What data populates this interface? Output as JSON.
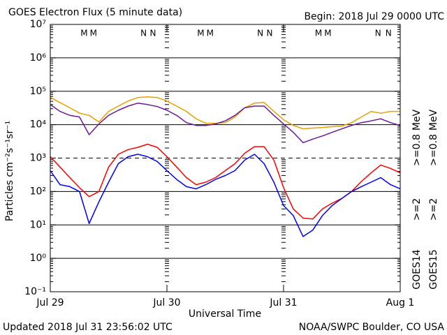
{
  "chart_data": {
    "type": "line",
    "title": "GOES Electron Flux (5 minute data)",
    "subtitle": "Begin: 2018 Jul 29 0000 UTC",
    "y_label": "Particles cm⁻²s⁻¹sr⁻¹",
    "x_label": "Universal Time",
    "footer_left": "Updated 2018 Jul 31 23:56:02 UTC",
    "footer_right": "NOAA/SWPC Boulder, CO USA",
    "log_y": true,
    "grid": true,
    "threshold": 1000,
    "xlim": [
      0,
      3
    ],
    "xticks": [
      {
        "value": 0,
        "label": "Jul 29"
      },
      {
        "value": 1,
        "label": "Jul 30"
      },
      {
        "value": 2,
        "label": "Jul 31"
      },
      {
        "value": 3,
        "label": "Aug 1"
      }
    ],
    "ylim": [
      0.1,
      10000000
    ],
    "yticks": [
      {
        "value": 0.1,
        "label": "10⁻¹"
      },
      {
        "value": 1,
        "label": "10⁰"
      },
      {
        "value": 10,
        "label": "10¹"
      },
      {
        "value": 100,
        "label": "10²"
      },
      {
        "value": 1000,
        "label": "10³"
      },
      {
        "value": 10000,
        "label": "10⁴"
      },
      {
        "value": 100000,
        "label": "10⁵"
      },
      {
        "value": 1000000,
        "label": "10⁶"
      },
      {
        "value": 10000000,
        "label": "10⁷"
      }
    ],
    "markers": [
      {
        "text": "M",
        "x": 0.29,
        "color": "#0000ff"
      },
      {
        "text": "M",
        "x": 0.37,
        "color": "#ff0000"
      },
      {
        "text": "N",
        "x": 0.8,
        "color": "#0000ff"
      },
      {
        "text": "N",
        "x": 0.88,
        "color": "#ff0000"
      },
      {
        "text": "M",
        "x": 1.29,
        "color": "#0000ff"
      },
      {
        "text": "M",
        "x": 1.37,
        "color": "#ff0000"
      },
      {
        "text": "N",
        "x": 1.8,
        "color": "#0000ff"
      },
      {
        "text": "N",
        "x": 1.88,
        "color": "#ff0000"
      },
      {
        "text": "M",
        "x": 2.3,
        "color": "#0000ff"
      },
      {
        "text": "M",
        "x": 2.38,
        "color": "#ff0000"
      },
      {
        "text": "N",
        "x": 2.81,
        "color": "#0000ff"
      },
      {
        "text": "N",
        "x": 2.9,
        "color": "#ff0000"
      }
    ],
    "x": [
      0,
      0.083,
      0.167,
      0.25,
      0.333,
      0.417,
      0.5,
      0.583,
      0.667,
      0.75,
      0.833,
      0.917,
      1,
      1.083,
      1.167,
      1.25,
      1.333,
      1.417,
      1.5,
      1.583,
      1.667,
      1.75,
      1.833,
      1.917,
      2,
      2.083,
      2.167,
      2.25,
      2.333,
      2.417,
      2.5,
      2.583,
      2.667,
      2.75,
      2.833,
      2.917,
      3
    ],
    "groups": [
      {
        "name": "GOES14",
        "unit": "MeV",
        "series": [
          {
            "name": ">=2",
            "color": "#0000ff",
            "values": [
              420,
              160,
              140,
              100,
              11,
              49,
              190,
              680,
              1100,
              1300,
              1100,
              790,
              420,
              230,
              140,
              120,
              160,
              230,
              300,
              420,
              870,
              1300,
              680,
              190,
              38,
              19,
              4.5,
              7,
              19,
              38,
              62,
              100,
              140,
              190,
              260,
              160,
              120
            ]
          },
          {
            "name": ">=0.8",
            "color": "#6a1a9a",
            "values": [
              40000,
              25000,
              19000,
              17000,
              5000,
              10500,
              19000,
              27000,
              36000,
              44000,
              40000,
              35000,
              27000,
              19000,
              11500,
              9500,
              9500,
              10500,
              13000,
              19000,
              32000,
              36000,
              36000,
              19000,
              10500,
              5900,
              2900,
              3700,
              4600,
              5900,
              7500,
              9500,
              11500,
              13000,
              15000,
              11500,
              9500
            ]
          }
        ]
      },
      {
        "name": "GOES15",
        "unit": "MeV",
        "series": [
          {
            "name": ">=2",
            "color": "#ff0000",
            "values": [
              1100,
              540,
              260,
              130,
              70,
              100,
              540,
              1300,
              1800,
              2100,
              2600,
              2100,
              1100,
              540,
              260,
              160,
              190,
              260,
              420,
              680,
              1400,
              2200,
              2200,
              870,
              130,
              30,
              16,
              15,
              30,
              45,
              62,
              100,
              200,
              360,
              620,
              490,
              360
            ]
          },
          {
            "name": ">=0.8",
            "color": "#e8a000",
            "values": [
              65000,
              46000,
              32000,
              22000,
              19000,
              12000,
              25000,
              36000,
              51000,
              65000,
              68000,
              65000,
              51000,
              36000,
              25000,
              15000,
              11000,
              11000,
              11500,
              17000,
              32000,
              44000,
              46000,
              25000,
              14000,
              9500,
              7500,
              7900,
              8200,
              8700,
              9100,
              11500,
              17000,
              25000,
              22000,
              25000,
              25000
            ]
          }
        ]
      }
    ]
  }
}
